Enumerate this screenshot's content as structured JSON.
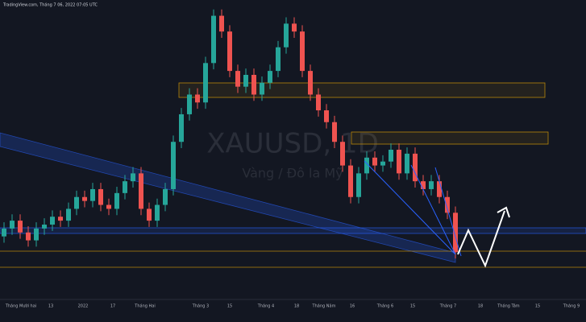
{
  "chart_data": {
    "type": "candlestick",
    "title": "XAUUSD, 1D",
    "subtitle": "Vàng / Đô la Mỹ",
    "source": "TradingView.com, Tháng 7 06, 2022 07:05 UTC",
    "up_color": "#26a69a",
    "down_color": "#ef5350",
    "ylim": [
      1700,
      2080
    ],
    "open": [
      1780,
      1790,
      1800,
      1785,
      1775,
      1790,
      1795,
      1805,
      1800,
      1815,
      1830,
      1825,
      1840,
      1820,
      1815,
      1835,
      1850,
      1860,
      1815,
      1800,
      1820,
      1840,
      1900,
      1935,
      1960,
      1950,
      2000,
      2060,
      2040,
      1990,
      1970,
      1985,
      1960,
      1975,
      1990,
      2020,
      2050,
      2040,
      1990,
      1960,
      1940,
      1925,
      1900,
      1870,
      1830,
      1860,
      1880,
      1870,
      1875,
      1890,
      1860,
      1885,
      1850,
      1840,
      1850,
      1830,
      1810
    ],
    "high": [
      1798,
      1808,
      1808,
      1793,
      1798,
      1803,
      1813,
      1813,
      1823,
      1838,
      1838,
      1848,
      1848,
      1828,
      1843,
      1858,
      1868,
      1868,
      1823,
      1828,
      1848,
      1908,
      1943,
      1968,
      1968,
      2008,
      2068,
      2068,
      2048,
      1998,
      1993,
      1993,
      1983,
      1998,
      2028,
      2058,
      2058,
      2048,
      1998,
      1968,
      1948,
      1933,
      1908,
      1878,
      1868,
      1888,
      1888,
      1883,
      1898,
      1898,
      1893,
      1893,
      1858,
      1858,
      1858,
      1838,
      1818
    ],
    "low": [
      1772,
      1782,
      1777,
      1767,
      1767,
      1782,
      1787,
      1792,
      1792,
      1807,
      1817,
      1817,
      1812,
      1807,
      1807,
      1827,
      1842,
      1807,
      1792,
      1792,
      1812,
      1832,
      1892,
      1927,
      1942,
      1942,
      1992,
      2032,
      1982,
      1962,
      1962,
      1952,
      1952,
      1967,
      1982,
      2012,
      2032,
      1982,
      1952,
      1932,
      1917,
      1892,
      1862,
      1822,
      1822,
      1852,
      1862,
      1862,
      1867,
      1852,
      1852,
      1842,
      1832,
      1832,
      1822,
      1802,
      1752
    ],
    "close": [
      1790,
      1800,
      1785,
      1775,
      1790,
      1795,
      1805,
      1800,
      1815,
      1830,
      1825,
      1840,
      1820,
      1815,
      1835,
      1850,
      1860,
      1815,
      1800,
      1820,
      1840,
      1900,
      1935,
      1960,
      1950,
      2000,
      2060,
      2040,
      1990,
      1970,
      1985,
      1960,
      1975,
      1990,
      2020,
      2050,
      2040,
      1990,
      1960,
      1940,
      1925,
      1900,
      1870,
      1830,
      1860,
      1880,
      1870,
      1875,
      1890,
      1860,
      1885,
      1850,
      1840,
      1850,
      1830,
      1810,
      1760
    ],
    "x_labels": [
      "Tháng Mười hai",
      "13",
      "2022",
      "17",
      "Tháng Hai",
      "Tháng 3",
      "15",
      "Tháng 4",
      "18",
      "Tháng Năm",
      "16",
      "Tháng 6",
      "15",
      "Tháng 7",
      "18",
      "Tháng Tám",
      "15",
      "Tháng 9"
    ]
  }
}
